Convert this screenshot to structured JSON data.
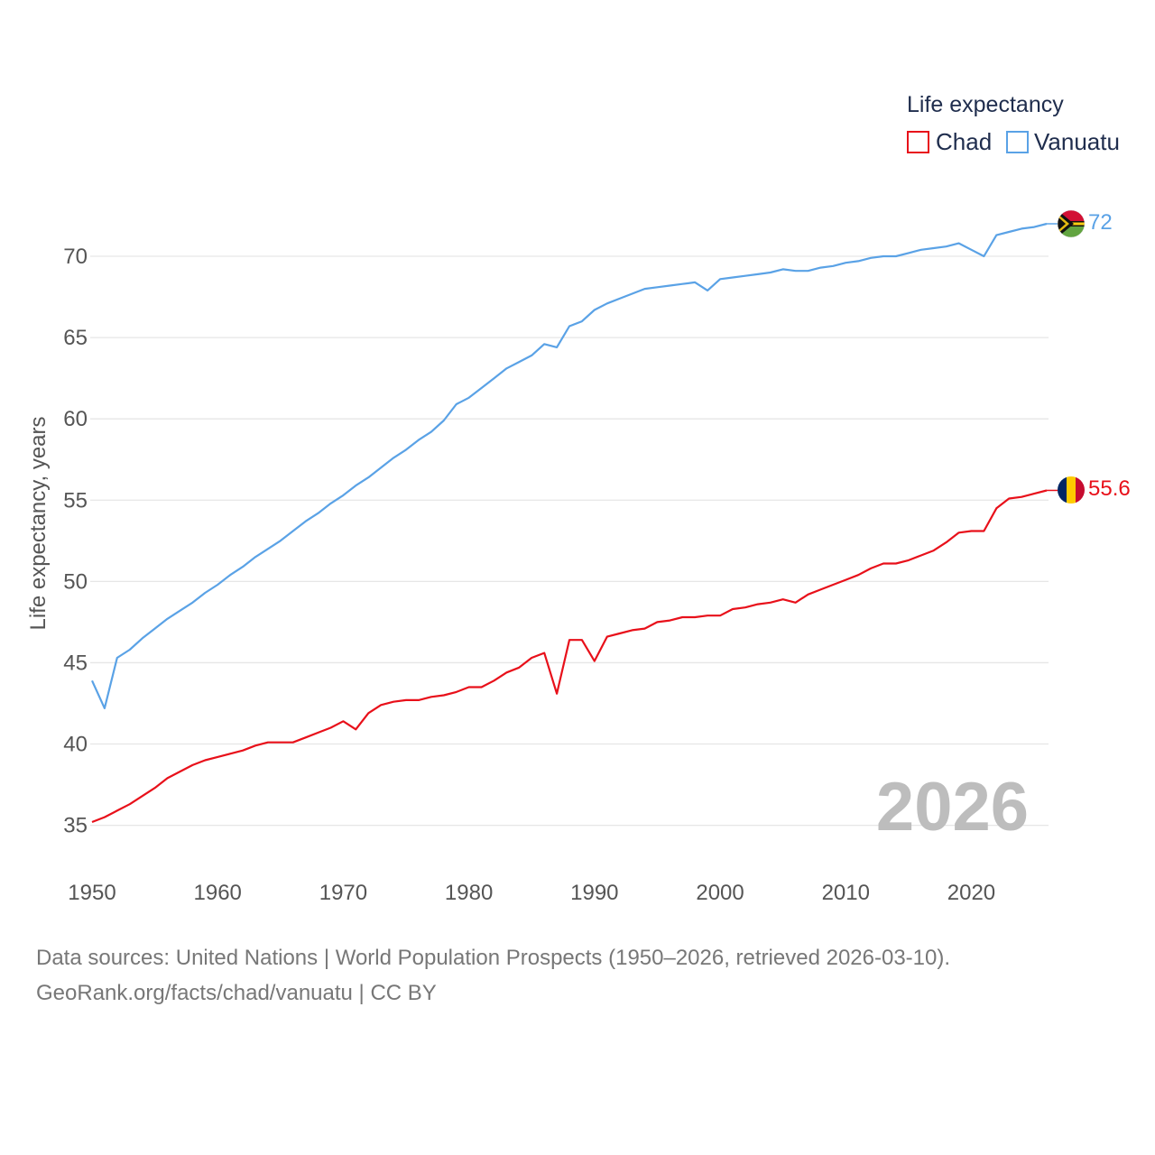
{
  "chart_data": {
    "type": "line",
    "legend_title": "Life expectancy",
    "ylabel": "Life expectancy, years",
    "xlabel": "",
    "xlim": [
      1950,
      2026
    ],
    "ylim": [
      33,
      74
    ],
    "x_ticks": [
      1950,
      1960,
      1970,
      1980,
      1990,
      2000,
      2010,
      2020
    ],
    "y_ticks": [
      35,
      40,
      45,
      50,
      55,
      60,
      65,
      70
    ],
    "grid": true,
    "legend_position": "top-right",
    "current_year": "2026",
    "x": [
      1950,
      1951,
      1952,
      1953,
      1954,
      1955,
      1956,
      1957,
      1958,
      1959,
      1960,
      1961,
      1962,
      1963,
      1964,
      1965,
      1966,
      1967,
      1968,
      1969,
      1970,
      1971,
      1972,
      1973,
      1974,
      1975,
      1976,
      1977,
      1978,
      1979,
      1980,
      1981,
      1982,
      1983,
      1984,
      1985,
      1986,
      1987,
      1988,
      1989,
      1990,
      1991,
      1992,
      1993,
      1994,
      1995,
      1996,
      1997,
      1998,
      1999,
      2000,
      2001,
      2002,
      2003,
      2004,
      2005,
      2006,
      2007,
      2008,
      2009,
      2010,
      2011,
      2012,
      2013,
      2014,
      2015,
      2016,
      2017,
      2018,
      2019,
      2020,
      2021,
      2022,
      2023,
      2024,
      2025,
      2026
    ],
    "series": [
      {
        "name": "Chad",
        "color": "#e8101a",
        "end_label": "55.6",
        "values": [
          35.2,
          35.5,
          35.9,
          36.3,
          36.8,
          37.3,
          37.9,
          38.3,
          38.7,
          39.0,
          39.2,
          39.4,
          39.6,
          39.9,
          40.1,
          40.1,
          40.1,
          40.4,
          40.7,
          41.0,
          41.4,
          40.9,
          41.9,
          42.4,
          42.6,
          42.7,
          42.7,
          42.9,
          43.0,
          43.2,
          43.5,
          43.5,
          43.9,
          44.4,
          44.7,
          45.3,
          45.6,
          43.1,
          46.4,
          46.4,
          45.1,
          46.6,
          46.8,
          47.0,
          47.1,
          47.5,
          47.6,
          47.8,
          47.8,
          47.9,
          47.9,
          48.3,
          48.4,
          48.6,
          48.7,
          48.9,
          48.7,
          49.2,
          49.5,
          49.8,
          50.1,
          50.4,
          50.8,
          51.1,
          51.1,
          51.3,
          51.6,
          51.9,
          52.4,
          53.0,
          53.1,
          53.1,
          54.5,
          55.1,
          55.2,
          55.4,
          55.6
        ]
      },
      {
        "name": "Vanuatu",
        "color": "#5aa2e6",
        "end_label": "72",
        "values": [
          43.9,
          42.2,
          45.3,
          45.8,
          46.5,
          47.1,
          47.7,
          48.2,
          48.7,
          49.3,
          49.8,
          50.4,
          50.9,
          51.5,
          52.0,
          52.5,
          53.1,
          53.7,
          54.2,
          54.8,
          55.3,
          55.9,
          56.4,
          57.0,
          57.6,
          58.1,
          58.7,
          59.2,
          59.9,
          60.9,
          61.3,
          61.9,
          62.5,
          63.1,
          63.5,
          63.9,
          64.6,
          64.4,
          65.7,
          66.0,
          66.7,
          67.1,
          67.4,
          67.7,
          68.0,
          68.1,
          68.2,
          68.3,
          68.4,
          67.9,
          68.6,
          68.7,
          68.8,
          68.9,
          69.0,
          69.2,
          69.1,
          69.1,
          69.3,
          69.4,
          69.6,
          69.7,
          69.9,
          70.0,
          70.0,
          70.2,
          70.4,
          70.5,
          70.6,
          70.8,
          70.4,
          70.0,
          71.3,
          71.5,
          71.7,
          71.8,
          72.0
        ]
      }
    ]
  },
  "source": {
    "line1": "Data sources: United Nations | World Population Prospects (1950–2026, retrieved 2026-03-10).",
    "line2": "GeoRank.org/facts/chad/vanuatu | CC BY"
  }
}
